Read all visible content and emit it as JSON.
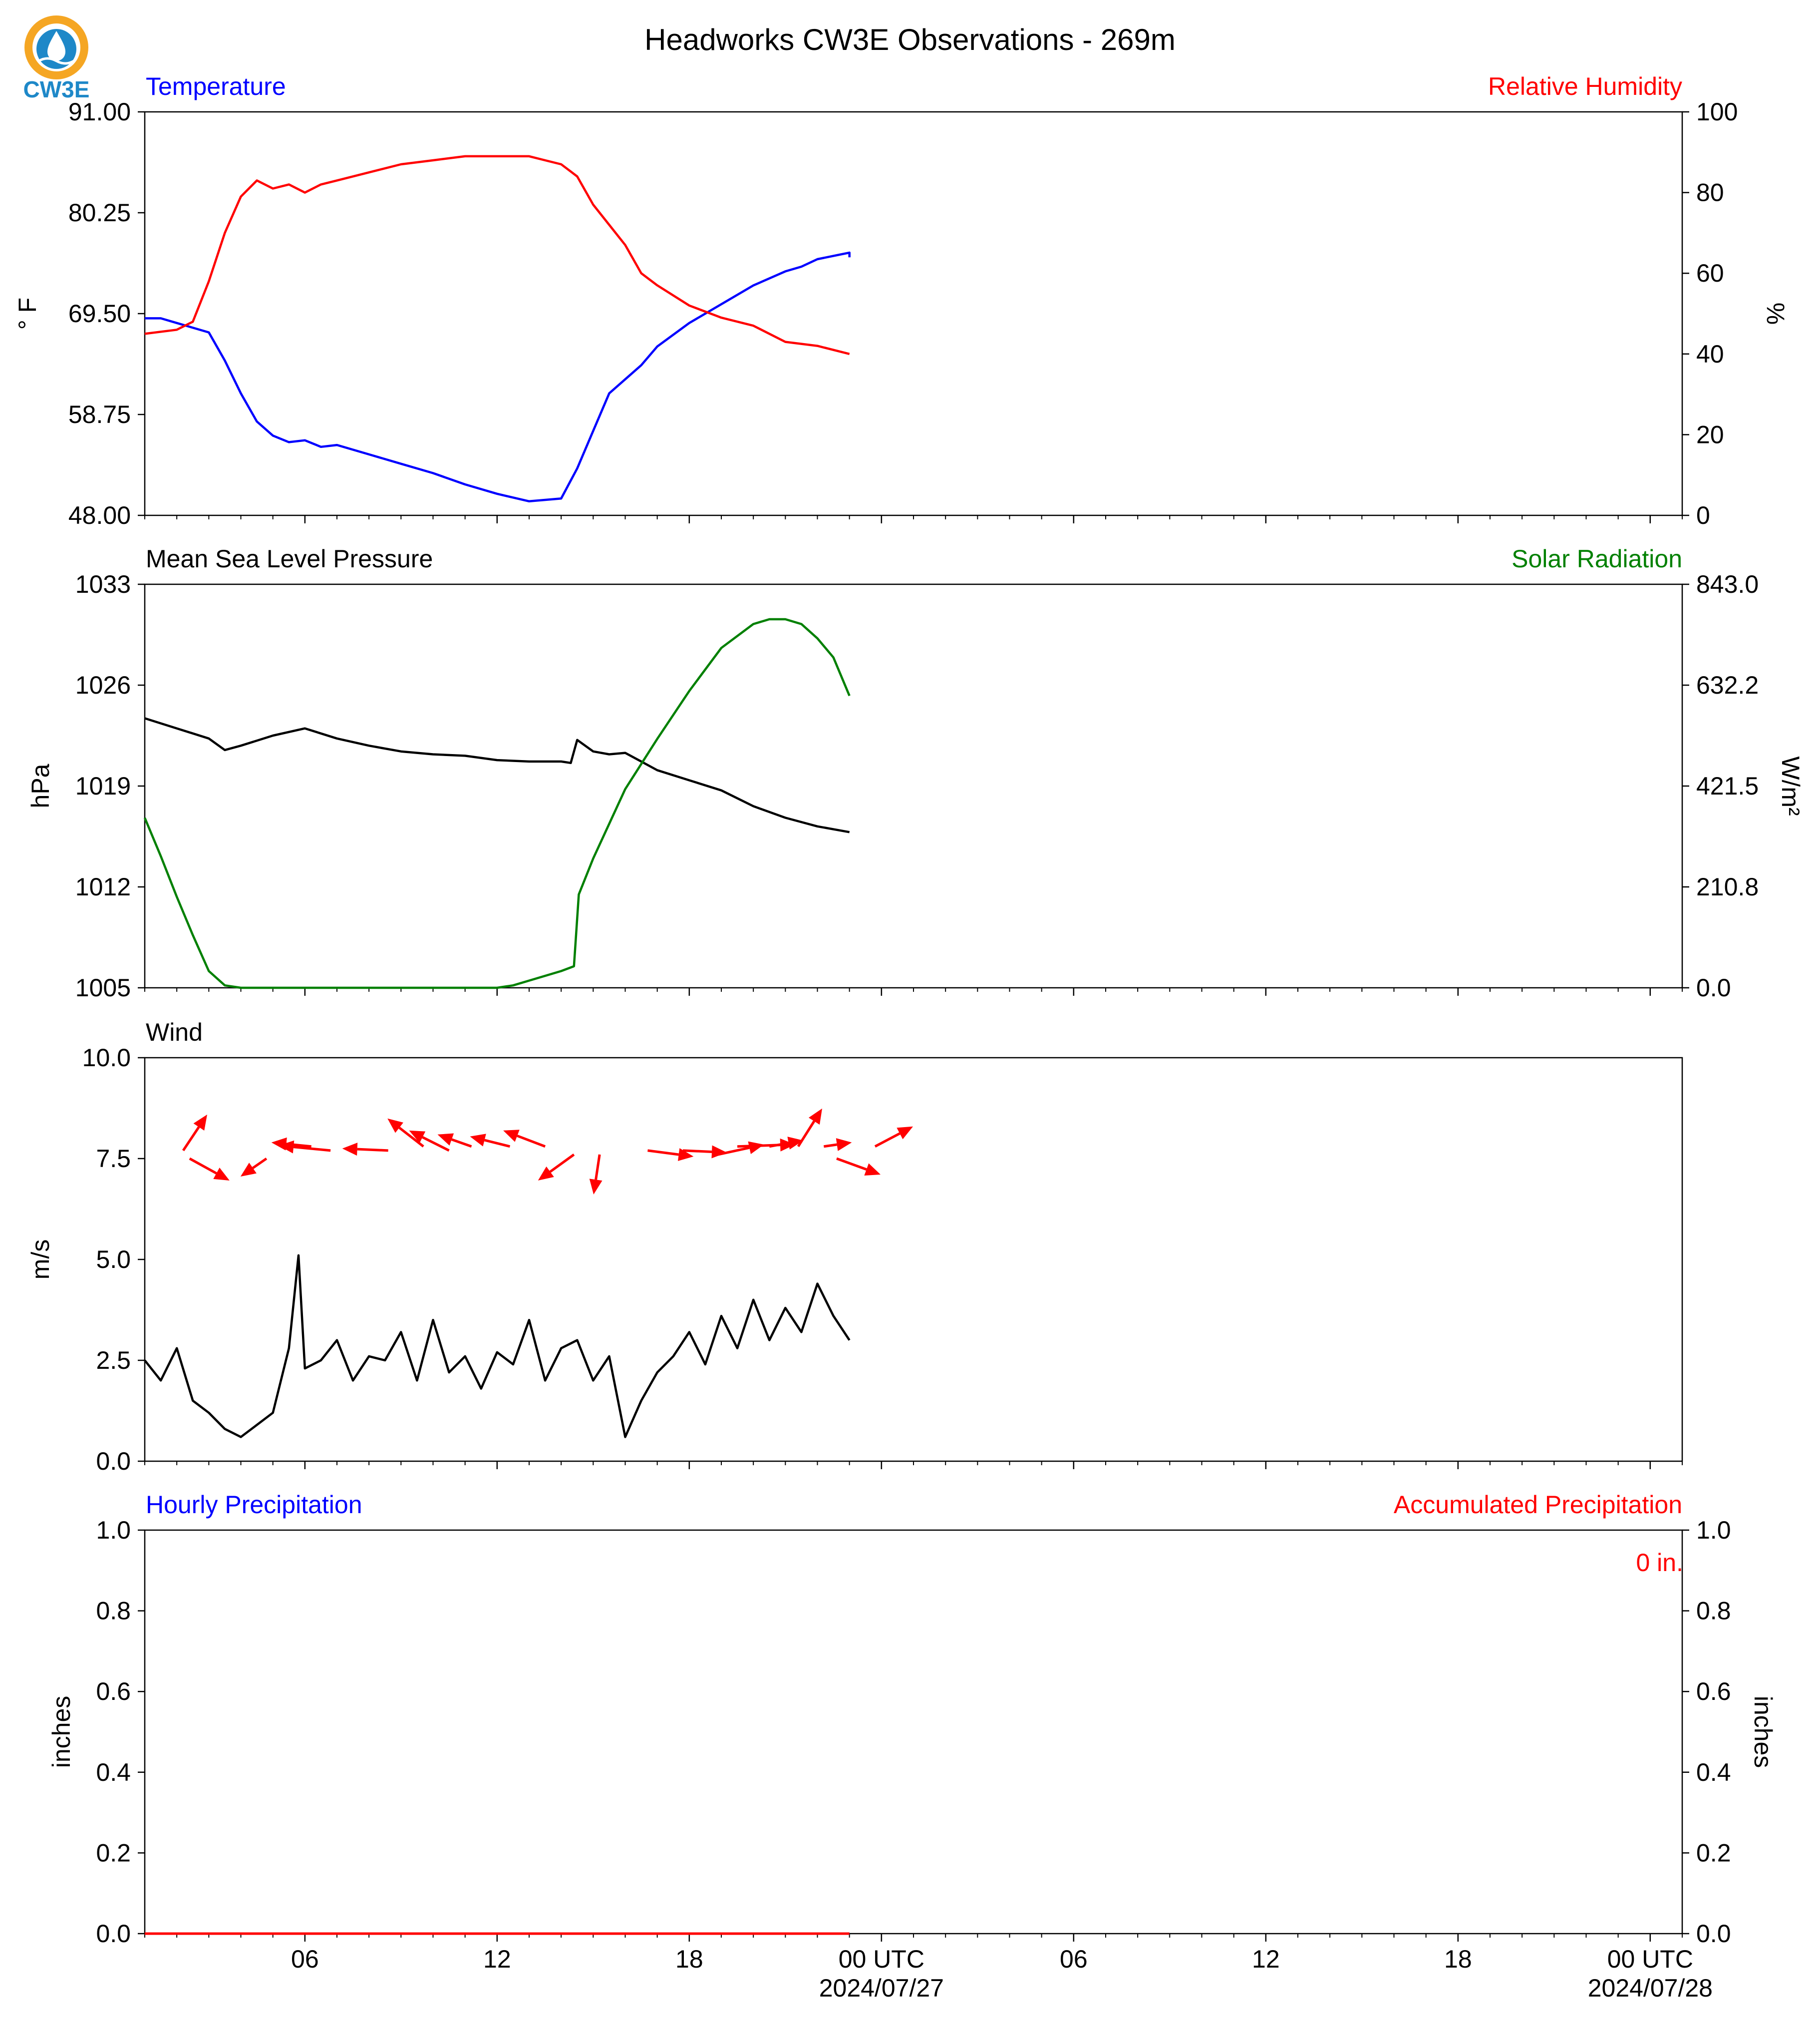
{
  "title": "Headworks CW3E Observations - 269m",
  "logo": {
    "text": "CW3E",
    "colors": {
      "ring": "#F5A623",
      "drop": "#1E88C8",
      "text": "#1E88C8"
    }
  },
  "colors": {
    "temperature": "#0000FF",
    "humidity": "#FF0000",
    "pressure": "#000000",
    "solar": "#008000",
    "wind_speed": "#000000",
    "wind_arrow": "#FF0000",
    "precip_hourly": "#0000FF",
    "precip_accum": "#FF0000"
  },
  "x_axis": {
    "ticks": [
      {
        "hour": 6,
        "label": "06"
      },
      {
        "hour": 12,
        "label": "12"
      },
      {
        "hour": 18,
        "label": "18"
      },
      {
        "hour": 24,
        "label": "00 UTC",
        "date": "2024/07/27"
      },
      {
        "hour": 30,
        "label": "06"
      },
      {
        "hour": 36,
        "label": "12"
      },
      {
        "hour": 42,
        "label": "18"
      },
      {
        "hour": 48,
        "label": "00 UTC",
        "date": "2024/07/28"
      }
    ]
  },
  "chart_data": [
    {
      "type": "line",
      "title_left": "Temperature",
      "title_right": "Relative Humidity",
      "ylabel_left": "° F",
      "ylabel_right": "%",
      "ylim_left": [
        48.0,
        91.0
      ],
      "ylim_right": [
        0,
        100
      ],
      "yticks_left": [
        "48.00",
        "58.75",
        "69.50",
        "80.25",
        "91.00"
      ],
      "yticks_right": [
        "0",
        "20",
        "40",
        "60",
        "80",
        "100"
      ],
      "x_range_hours": [
        1,
        49
      ],
      "series": [
        {
          "name": "Temperature",
          "axis": "left",
          "color": "#0000FF",
          "x": [
            1,
            1.5,
            2,
            3,
            3.5,
            4,
            4.5,
            5,
            5.5,
            6,
            6.5,
            7,
            8,
            9,
            10,
            11,
            12,
            13,
            14,
            14.5,
            15,
            15.5,
            16,
            16.5,
            17,
            18,
            19,
            20,
            21,
            21.5,
            22,
            23,
            23
          ],
          "y": [
            69.0,
            69.0,
            68.5,
            67.5,
            64.5,
            61.0,
            58.0,
            56.5,
            55.8,
            56.0,
            55.3,
            55.5,
            54.5,
            53.5,
            52.5,
            51.3,
            50.3,
            49.5,
            49.8,
            53.0,
            57.0,
            61.0,
            62.5,
            64.0,
            66.0,
            68.5,
            70.5,
            72.5,
            74.0,
            74.5,
            75.3,
            76.0,
            75.5
          ]
        },
        {
          "name": "Relative Humidity",
          "axis": "right",
          "color": "#FF0000",
          "x": [
            1,
            2,
            2.5,
            3,
            3.5,
            4,
            4.5,
            5,
            5.5,
            6,
            6.5,
            7,
            8,
            9,
            10,
            11,
            12,
            13,
            13.5,
            14,
            14.5,
            15,
            15.5,
            16,
            16.5,
            17,
            18,
            19,
            20,
            21,
            22,
            23
          ],
          "y": [
            45,
            46,
            48,
            58,
            70,
            79,
            83,
            81,
            82,
            80,
            82,
            83,
            85,
            87,
            88,
            89,
            89,
            89,
            88,
            87,
            84,
            77,
            72,
            67,
            60,
            57,
            52,
            49,
            47,
            43,
            42,
            40
          ]
        }
      ]
    },
    {
      "type": "line",
      "title_left": "Mean Sea Level Pressure",
      "title_right": "Solar Radiation",
      "ylabel_left": "hPa",
      "ylabel_right": "W/m²",
      "ylim_left": [
        1005,
        1033
      ],
      "ylim_right": [
        0.0,
        843.0
      ],
      "yticks_left": [
        "1005",
        "1012",
        "1019",
        "1026",
        "1033"
      ],
      "yticks_right": [
        "0.0",
        "210.8",
        "421.5",
        "632.2",
        "843.0"
      ],
      "x_range_hours": [
        1,
        49
      ],
      "series": [
        {
          "name": "Mean Sea Level Pressure",
          "axis": "left",
          "color": "#000000",
          "x": [
            1,
            2,
            3,
            3.5,
            4,
            5,
            6,
            7,
            8,
            9,
            10,
            11,
            12,
            13,
            14,
            14.3,
            14.5,
            15,
            15.5,
            16,
            16.5,
            17,
            18,
            19,
            20,
            21,
            22,
            23
          ],
          "y": [
            1023.7,
            1023.0,
            1022.3,
            1021.5,
            1021.8,
            1022.5,
            1023.0,
            1022.3,
            1021.8,
            1021.4,
            1021.2,
            1021.1,
            1020.8,
            1020.7,
            1020.7,
            1020.6,
            1022.2,
            1021.4,
            1021.2,
            1021.3,
            1020.7,
            1020.1,
            1019.4,
            1018.7,
            1017.6,
            1016.8,
            1016.2,
            1015.8
          ]
        },
        {
          "name": "Solar Radiation",
          "axis": "right",
          "color": "#008000",
          "x": [
            1,
            1.5,
            2,
            2.5,
            3,
            3.5,
            4,
            5,
            6,
            8,
            10,
            12,
            12.5,
            13,
            14,
            14.4,
            14.55,
            15,
            16,
            17,
            18,
            19,
            20,
            20.5,
            21,
            21.5,
            22,
            22.5,
            23
          ],
          "y": [
            355,
            275,
            190,
            110,
            35,
            5,
            0,
            0,
            0,
            0,
            0,
            0,
            5,
            15,
            35,
            45,
            195,
            270,
            415,
            520,
            620,
            710,
            760,
            770,
            770,
            760,
            730,
            690,
            610
          ]
        }
      ]
    },
    {
      "type": "line",
      "title_left": "Wind",
      "ylabel_left": "m/s",
      "ylim_left": [
        0.0,
        10.0
      ],
      "yticks_left": [
        "0.0",
        "2.5",
        "5.0",
        "7.5",
        "10.0"
      ],
      "x_range_hours": [
        1,
        49
      ],
      "series": [
        {
          "name": "Wind Speed",
          "axis": "left",
          "color": "#000000",
          "x": [
            1,
            1.5,
            2,
            2.5,
            3,
            3.5,
            4,
            4.5,
            5,
            5.5,
            5.8,
            6,
            6.5,
            7,
            7.5,
            8,
            8.5,
            9,
            9.5,
            10,
            10.5,
            11,
            11.5,
            12,
            12.5,
            13,
            13.5,
            14,
            14.5,
            15,
            15.5,
            16,
            16.5,
            17,
            17.5,
            18,
            18.5,
            19,
            19.5,
            20,
            20.5,
            21,
            21.5,
            22,
            22.5,
            23
          ],
          "y": [
            2.5,
            2.0,
            2.8,
            1.5,
            1.2,
            0.8,
            0.6,
            0.9,
            1.2,
            2.8,
            5.1,
            2.3,
            2.5,
            3.0,
            2.0,
            2.6,
            2.5,
            3.2,
            2.0,
            3.5,
            2.2,
            2.6,
            1.8,
            2.7,
            2.4,
            3.5,
            2.0,
            2.8,
            3.0,
            2.0,
            2.6,
            0.6,
            1.5,
            2.2,
            2.6,
            3.2,
            2.4,
            3.6,
            2.8,
            4.0,
            3.0,
            3.8,
            3.2,
            4.4,
            3.6,
            3.0
          ]
        }
      ],
      "wind_arrows": [
        {
          "x": 2.2,
          "y": 7.7,
          "u": 1.2,
          "v": 1.8
        },
        {
          "x": 2.4,
          "y": 7.5,
          "u": 2.0,
          "v": -1.1
        },
        {
          "x": 4.8,
          "y": 7.5,
          "u": -1.3,
          "v": -0.9
        },
        {
          "x": 6.2,
          "y": 7.8,
          "u": -2.0,
          "v": 0.2
        },
        {
          "x": 6.8,
          "y": 7.7,
          "u": -2.6,
          "v": 0.25
        },
        {
          "x": 8.6,
          "y": 7.7,
          "u": -2.3,
          "v": 0.1
        },
        {
          "x": 9.7,
          "y": 7.8,
          "u": -1.8,
          "v": 1.4
        },
        {
          "x": 10.5,
          "y": 7.7,
          "u": -2.0,
          "v": 1.0
        },
        {
          "x": 11.2,
          "y": 7.8,
          "u": -1.7,
          "v": 0.6
        },
        {
          "x": 12.4,
          "y": 7.8,
          "u": -2.0,
          "v": 0.5
        },
        {
          "x": 13.5,
          "y": 7.8,
          "u": -2.1,
          "v": 0.8
        },
        {
          "x": 14.4,
          "y": 7.6,
          "u": -1.8,
          "v": -1.3
        },
        {
          "x": 15.2,
          "y": 7.6,
          "u": -0.3,
          "v": -2.0
        },
        {
          "x": 16.7,
          "y": 7.7,
          "u": 2.3,
          "v": -0.3
        },
        {
          "x": 17.8,
          "y": 7.7,
          "u": 2.2,
          "v": -0.1
        },
        {
          "x": 18.9,
          "y": 7.6,
          "u": 2.3,
          "v": 0.5
        },
        {
          "x": 19.5,
          "y": 7.8,
          "u": 2.9,
          "v": 0.1
        },
        {
          "x": 20.5,
          "y": 7.8,
          "u": 1.7,
          "v": 0.3
        },
        {
          "x": 21.4,
          "y": 7.8,
          "u": 1.2,
          "v": 1.9
        },
        {
          "x": 22.2,
          "y": 7.8,
          "u": 1.4,
          "v": 0.2
        },
        {
          "x": 22.6,
          "y": 7.5,
          "u": 2.2,
          "v": -0.8
        },
        {
          "x": 23.8,
          "y": 7.8,
          "u": 1.9,
          "v": 1.0
        }
      ]
    },
    {
      "type": "bar",
      "title_left": "Hourly Precipitation",
      "title_right": "Accumulated Precipitation",
      "ylabel_left": "inches",
      "ylabel_right": "inches",
      "ylim_left": [
        0.0,
        1.0
      ],
      "ylim_right": [
        0.0,
        1.0
      ],
      "yticks_left": [
        "0.0",
        "0.2",
        "0.4",
        "0.6",
        "0.8",
        "1.0"
      ],
      "yticks_right": [
        "0.0",
        "0.2",
        "0.4",
        "0.6",
        "0.8",
        "1.0"
      ],
      "annotation": "0 in.",
      "x_range_hours": [
        1,
        49
      ],
      "series": [
        {
          "name": "Hourly Precipitation",
          "axis": "left",
          "color": "#0000FF",
          "x": [
            1,
            23
          ],
          "y": [
            0,
            0
          ]
        },
        {
          "name": "Accumulated Precipitation",
          "axis": "right",
          "color": "#FF0000",
          "x": [
            1,
            23
          ],
          "y": [
            0,
            0
          ]
        }
      ]
    }
  ]
}
